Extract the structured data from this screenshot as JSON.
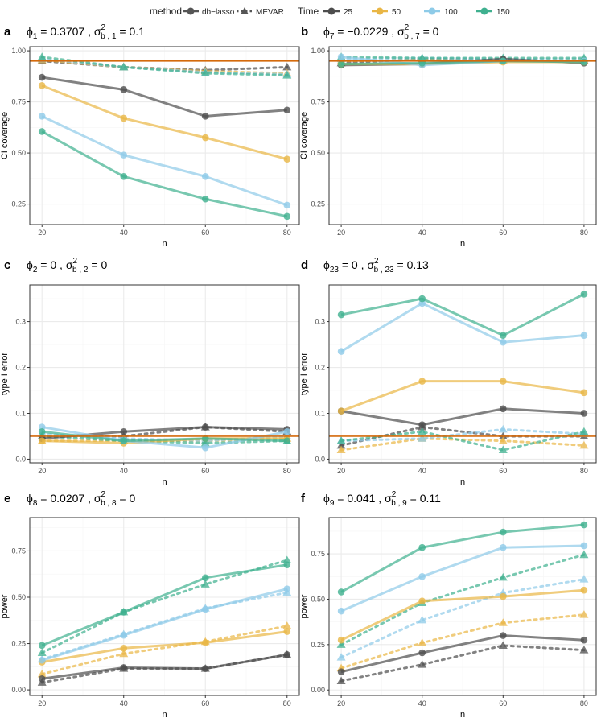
{
  "legend": {
    "method_title": "method",
    "methods": [
      {
        "key": "dblasso",
        "label": "db−lasso",
        "shape": "circle",
        "linetype": "solid"
      },
      {
        "key": "mevar",
        "label": "MEVAR",
        "shape": "triangle",
        "linetype": "dotted"
      }
    ],
    "time_title": "Time",
    "times": [
      {
        "key": "25",
        "label": "25",
        "color": "#4d4d4d"
      },
      {
        "key": "50",
        "label": "50",
        "color": "#e9b645"
      },
      {
        "key": "100",
        "label": "100",
        "color": "#8ecbe8"
      },
      {
        "key": "150",
        "label": "150",
        "color": "#3fb08f"
      }
    ]
  },
  "colors": {
    "reference_line": "#d46a0c",
    "panel_border": "#333333",
    "grid_major": "#ebebeb",
    "grid_minor": "#f5f5f5"
  },
  "chart_data": [
    {
      "panel": "a",
      "type": "line",
      "title_parts": [
        "ϕ",
        "1",
        " = 0.3707 ,  σ",
        "2",
        "b , 1",
        " = 0.1"
      ],
      "xlabel": "n",
      "ylabel": "CI coverage",
      "x": [
        20,
        40,
        60,
        80
      ],
      "xlim": [
        17,
        83
      ],
      "ylim": [
        0.15,
        1.02
      ],
      "yticks": [
        0.25,
        0.5,
        0.75,
        1.0
      ],
      "ytick_labels": [
        "0.25",
        "0.50",
        "0.75",
        "1.00"
      ],
      "xtick_labels": [
        "20",
        "40",
        "60",
        "80"
      ],
      "reference_line": 0.95,
      "series": [
        {
          "method": "dblasso",
          "time": "25",
          "values": [
            0.87,
            0.81,
            0.68,
            0.71
          ]
        },
        {
          "method": "dblasso",
          "time": "50",
          "values": [
            0.83,
            0.67,
            0.575,
            0.47
          ]
        },
        {
          "method": "dblasso",
          "time": "100",
          "values": [
            0.68,
            0.49,
            0.385,
            0.245
          ]
        },
        {
          "method": "dblasso",
          "time": "150",
          "values": [
            0.605,
            0.385,
            0.275,
            0.19
          ]
        },
        {
          "method": "mevar",
          "time": "25",
          "values": [
            0.95,
            0.92,
            0.905,
            0.92
          ]
        },
        {
          "method": "mevar",
          "time": "50",
          "values": [
            0.955,
            0.92,
            0.9,
            0.89
          ]
        },
        {
          "method": "mevar",
          "time": "100",
          "values": [
            0.96,
            0.92,
            0.895,
            0.885
          ]
        },
        {
          "method": "mevar",
          "time": "150",
          "values": [
            0.97,
            0.92,
            0.89,
            0.88
          ]
        }
      ]
    },
    {
      "panel": "b",
      "type": "line",
      "title_parts": [
        "ϕ",
        "7",
        " = −0.0229 ,  σ",
        "2",
        "b , 7",
        " = 0"
      ],
      "xlabel": "n",
      "ylabel": "CI coverage",
      "x": [
        20,
        40,
        60,
        80
      ],
      "xlim": [
        17,
        83
      ],
      "ylim": [
        0.15,
        1.02
      ],
      "yticks": [
        0.25,
        0.5,
        0.75,
        1.0
      ],
      "ytick_labels": [
        "0.25",
        "0.50",
        "0.75",
        "1.00"
      ],
      "xtick_labels": [
        "20",
        "40",
        "60",
        "80"
      ],
      "reference_line": 0.95,
      "series": [
        {
          "method": "dblasso",
          "time": "25",
          "values": [
            0.93,
            0.935,
            0.96,
            0.94
          ]
        },
        {
          "method": "dblasso",
          "time": "50",
          "values": [
            0.935,
            0.935,
            0.945,
            0.945
          ]
        },
        {
          "method": "dblasso",
          "time": "100",
          "values": [
            0.97,
            0.93,
            0.95,
            0.95
          ]
        },
        {
          "method": "dblasso",
          "time": "150",
          "values": [
            0.935,
            0.94,
            0.95,
            0.945
          ]
        },
        {
          "method": "mevar",
          "time": "25",
          "values": [
            0.94,
            0.96,
            0.955,
            0.95
          ]
        },
        {
          "method": "mevar",
          "time": "50",
          "values": [
            0.95,
            0.955,
            0.95,
            0.955
          ]
        },
        {
          "method": "mevar",
          "time": "100",
          "values": [
            0.96,
            0.965,
            0.96,
            0.96
          ]
        },
        {
          "method": "mevar",
          "time": "150",
          "values": [
            0.97,
            0.965,
            0.965,
            0.965
          ]
        }
      ]
    },
    {
      "panel": "c",
      "type": "line",
      "title_parts": [
        "ϕ",
        "2",
        " = 0 ,  σ",
        "2",
        "b , 2",
        " = 0"
      ],
      "xlabel": "n",
      "ylabel": "type I error",
      "x": [
        20,
        40,
        60,
        80
      ],
      "xlim": [
        17,
        83
      ],
      "ylim": [
        -0.008,
        0.38
      ],
      "yticks": [
        0.0,
        0.1,
        0.2,
        0.3
      ],
      "ytick_labels": [
        "0.0",
        "0.1",
        "0.2",
        "0.3"
      ],
      "xtick_labels": [
        "20",
        "40",
        "60",
        "80"
      ],
      "reference_line": 0.05,
      "series": [
        {
          "method": "dblasso",
          "time": "25",
          "values": [
            0.045,
            0.06,
            0.07,
            0.065
          ]
        },
        {
          "method": "dblasso",
          "time": "50",
          "values": [
            0.04,
            0.035,
            0.045,
            0.045
          ]
        },
        {
          "method": "dblasso",
          "time": "100",
          "values": [
            0.07,
            0.04,
            0.025,
            0.06
          ]
        },
        {
          "method": "dblasso",
          "time": "150",
          "values": [
            0.06,
            0.04,
            0.045,
            0.04
          ]
        },
        {
          "method": "mevar",
          "time": "25",
          "values": [
            0.05,
            0.05,
            0.07,
            0.06
          ]
        },
        {
          "method": "mevar",
          "time": "50",
          "values": [
            0.04,
            0.04,
            0.04,
            0.045
          ]
        },
        {
          "method": "mevar",
          "time": "100",
          "values": [
            0.055,
            0.045,
            0.04,
            0.05
          ]
        },
        {
          "method": "mevar",
          "time": "150",
          "values": [
            0.05,
            0.04,
            0.035,
            0.04
          ]
        }
      ]
    },
    {
      "panel": "d",
      "type": "line",
      "title_parts": [
        "ϕ",
        "23",
        " = 0 ,  σ",
        "2",
        "b , 23",
        " = 0.13"
      ],
      "xlabel": "n",
      "ylabel": "type I error",
      "x": [
        20,
        40,
        60,
        80
      ],
      "xlim": [
        17,
        83
      ],
      "ylim": [
        -0.008,
        0.38
      ],
      "yticks": [
        0.0,
        0.1,
        0.2,
        0.3
      ],
      "ytick_labels": [
        "0.0",
        "0.1",
        "0.2",
        "0.3"
      ],
      "xtick_labels": [
        "20",
        "40",
        "60",
        "80"
      ],
      "reference_line": 0.05,
      "series": [
        {
          "method": "dblasso",
          "time": "25",
          "values": [
            0.105,
            0.075,
            0.11,
            0.1
          ]
        },
        {
          "method": "dblasso",
          "time": "50",
          "values": [
            0.105,
            0.17,
            0.17,
            0.145
          ]
        },
        {
          "method": "dblasso",
          "time": "100",
          "values": [
            0.235,
            0.34,
            0.255,
            0.27
          ]
        },
        {
          "method": "dblasso",
          "time": "150",
          "values": [
            0.315,
            0.35,
            0.27,
            0.36
          ]
        },
        {
          "method": "mevar",
          "time": "25",
          "values": [
            0.03,
            0.07,
            0.05,
            0.05
          ]
        },
        {
          "method": "mevar",
          "time": "50",
          "values": [
            0.02,
            0.045,
            0.04,
            0.03
          ]
        },
        {
          "method": "mevar",
          "time": "100",
          "values": [
            0.04,
            0.045,
            0.065,
            0.055
          ]
        },
        {
          "method": "mevar",
          "time": "150",
          "values": [
            0.04,
            0.06,
            0.02,
            0.06
          ]
        }
      ]
    },
    {
      "panel": "e",
      "type": "line",
      "title_parts": [
        "ϕ",
        "8",
        " = 0.0207 ,  σ",
        "2",
        "b , 8",
        " = 0"
      ],
      "xlabel": "n",
      "ylabel": "power",
      "x": [
        20,
        40,
        60,
        80
      ],
      "xlim": [
        17,
        83
      ],
      "ylim": [
        -0.03,
        0.93
      ],
      "yticks": [
        0.0,
        0.25,
        0.5,
        0.75
      ],
      "ytick_labels": [
        "0.00",
        "0.25",
        "0.50",
        "0.75"
      ],
      "xtick_labels": [
        "20",
        "40",
        "60",
        "80"
      ],
      "series": [
        {
          "method": "dblasso",
          "time": "25",
          "values": [
            0.06,
            0.12,
            0.115,
            0.19
          ]
        },
        {
          "method": "dblasso",
          "time": "50",
          "values": [
            0.15,
            0.225,
            0.255,
            0.315
          ]
        },
        {
          "method": "dblasso",
          "time": "100",
          "values": [
            0.16,
            0.295,
            0.435,
            0.545
          ]
        },
        {
          "method": "dblasso",
          "time": "150",
          "values": [
            0.24,
            0.42,
            0.605,
            0.675
          ]
        },
        {
          "method": "mevar",
          "time": "25",
          "values": [
            0.04,
            0.115,
            0.115,
            0.19
          ]
        },
        {
          "method": "mevar",
          "time": "50",
          "values": [
            0.085,
            0.195,
            0.26,
            0.345
          ]
        },
        {
          "method": "mevar",
          "time": "100",
          "values": [
            0.165,
            0.3,
            0.44,
            0.525
          ]
        },
        {
          "method": "mevar",
          "time": "150",
          "values": [
            0.2,
            0.42,
            0.57,
            0.7
          ]
        }
      ]
    },
    {
      "panel": "f",
      "type": "line",
      "title_parts": [
        "ϕ",
        "9",
        " = 0.041 ,  σ",
        "2",
        "b , 9",
        " = 0.11"
      ],
      "xlabel": "n",
      "ylabel": "power",
      "x": [
        20,
        40,
        60,
        80
      ],
      "xlim": [
        17,
        83
      ],
      "ylim": [
        -0.03,
        0.95
      ],
      "yticks": [
        0.0,
        0.25,
        0.5,
        0.75
      ],
      "ytick_labels": [
        "0.00",
        "0.25",
        "0.50",
        "0.75"
      ],
      "xtick_labels": [
        "20",
        "40",
        "60",
        "80"
      ],
      "series": [
        {
          "method": "dblasso",
          "time": "25",
          "values": [
            0.1,
            0.205,
            0.3,
            0.275
          ]
        },
        {
          "method": "dblasso",
          "time": "50",
          "values": [
            0.275,
            0.49,
            0.515,
            0.55
          ]
        },
        {
          "method": "dblasso",
          "time": "100",
          "values": [
            0.435,
            0.625,
            0.785,
            0.795
          ]
        },
        {
          "method": "dblasso",
          "time": "150",
          "values": [
            0.54,
            0.785,
            0.87,
            0.91
          ]
        },
        {
          "method": "mevar",
          "time": "25",
          "values": [
            0.05,
            0.14,
            0.245,
            0.22
          ]
        },
        {
          "method": "mevar",
          "time": "50",
          "values": [
            0.12,
            0.26,
            0.37,
            0.415
          ]
        },
        {
          "method": "mevar",
          "time": "100",
          "values": [
            0.18,
            0.385,
            0.535,
            0.61
          ]
        },
        {
          "method": "mevar",
          "time": "150",
          "values": [
            0.25,
            0.48,
            0.62,
            0.745
          ]
        }
      ]
    }
  ]
}
